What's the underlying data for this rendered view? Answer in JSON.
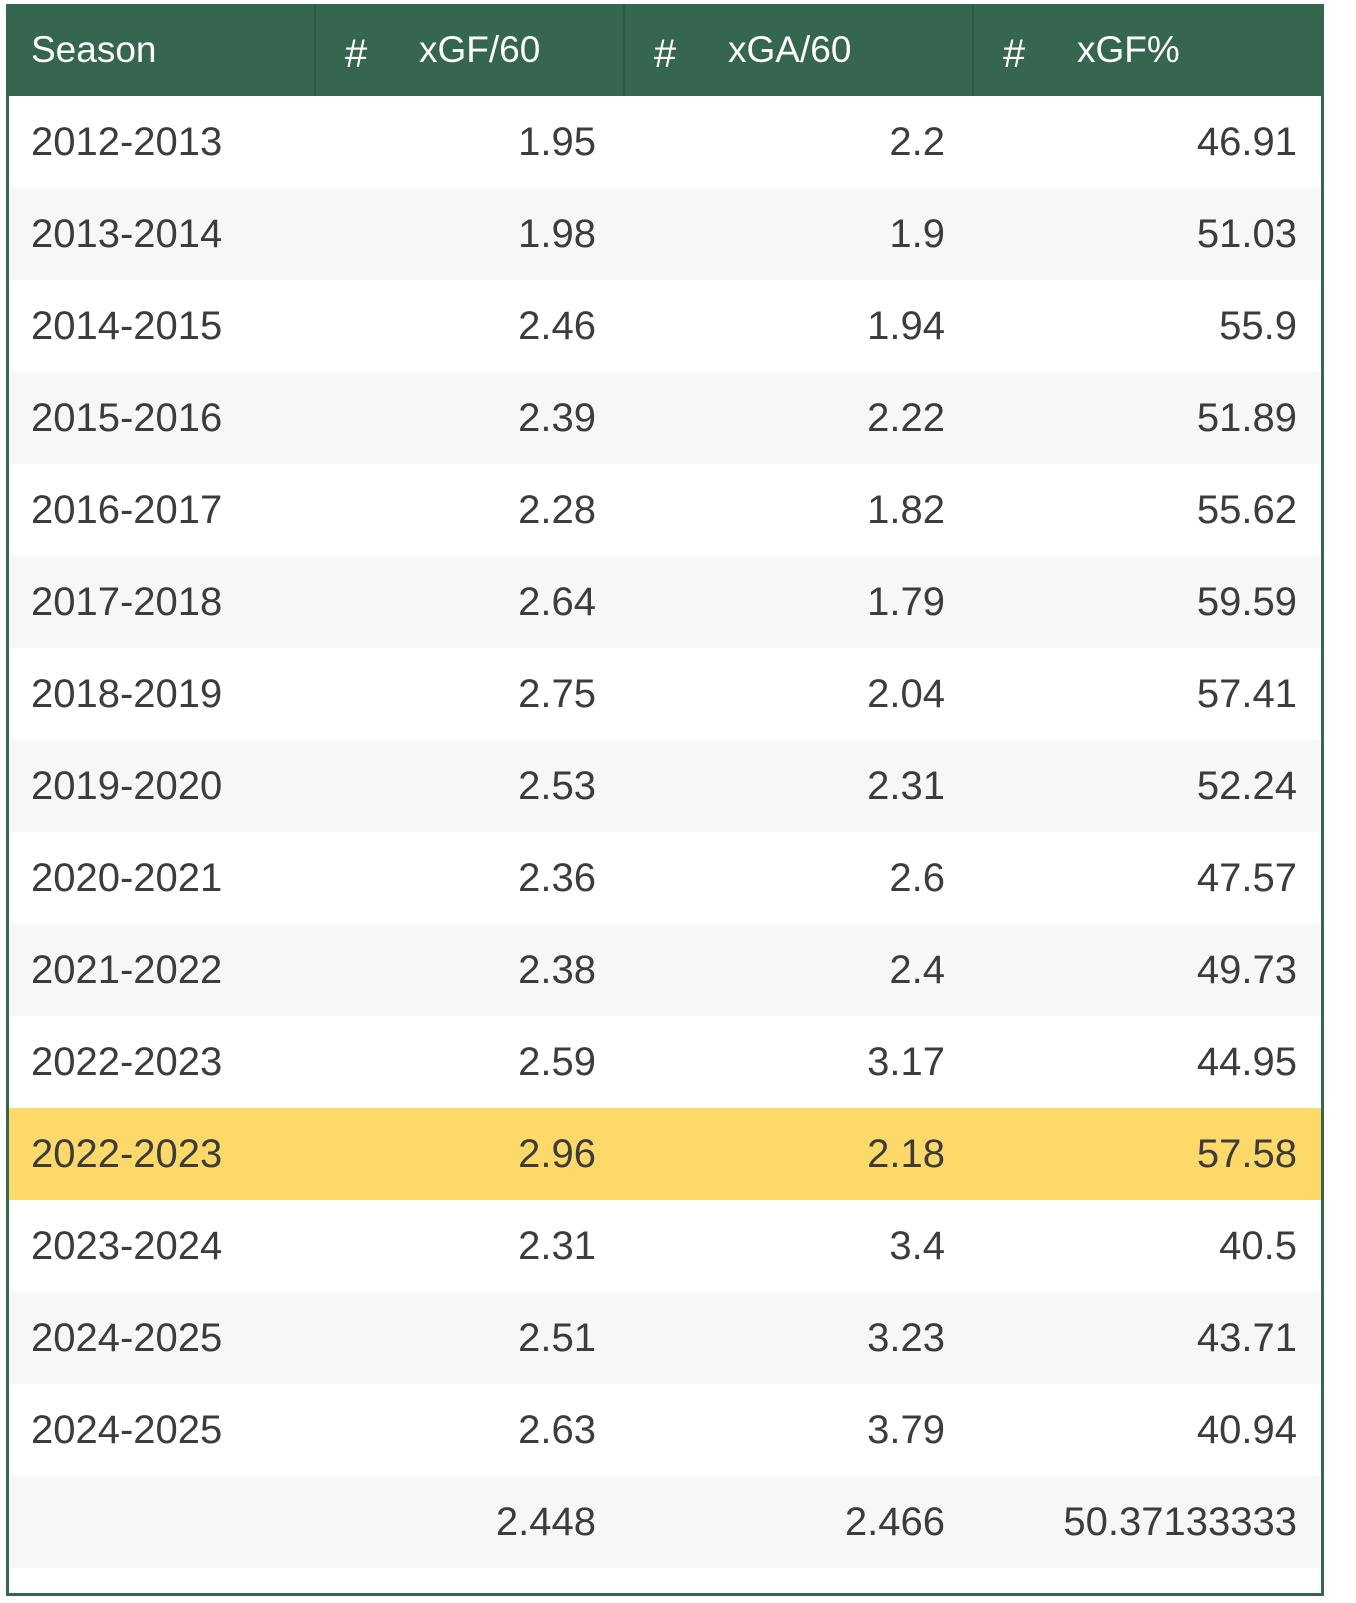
{
  "chart_data": {
    "type": "table",
    "columns": [
      {
        "label": "Season",
        "type_icon": ""
      },
      {
        "label": "xGF/60",
        "type_icon": "#"
      },
      {
        "label": "xGA/60",
        "type_icon": "#"
      },
      {
        "label": "xGF%",
        "type_icon": "#"
      }
    ],
    "rows": [
      {
        "season": "2012-2013",
        "xgf60": "1.95",
        "xga60": "2.2",
        "xgf_pct": "46.91"
      },
      {
        "season": "2013-2014",
        "xgf60": "1.98",
        "xga60": "1.9",
        "xgf_pct": "51.03"
      },
      {
        "season": "2014-2015",
        "xgf60": "2.46",
        "xga60": "1.94",
        "xgf_pct": "55.9"
      },
      {
        "season": "2015-2016",
        "xgf60": "2.39",
        "xga60": "2.22",
        "xgf_pct": "51.89"
      },
      {
        "season": "2016-2017",
        "xgf60": "2.28",
        "xga60": "1.82",
        "xgf_pct": "55.62"
      },
      {
        "season": "2017-2018",
        "xgf60": "2.64",
        "xga60": "1.79",
        "xgf_pct": "59.59"
      },
      {
        "season": "2018-2019",
        "xgf60": "2.75",
        "xga60": "2.04",
        "xgf_pct": "57.41"
      },
      {
        "season": "2019-2020",
        "xgf60": "2.53",
        "xga60": "2.31",
        "xgf_pct": "52.24"
      },
      {
        "season": "2020-2021",
        "xgf60": "2.36",
        "xga60": "2.6",
        "xgf_pct": "47.57"
      },
      {
        "season": "2021-2022",
        "xgf60": "2.38",
        "xga60": "2.4",
        "xgf_pct": "49.73"
      },
      {
        "season": "2022-2023",
        "xgf60": "2.59",
        "xga60": "3.17",
        "xgf_pct": "44.95"
      },
      {
        "season": "2022-2023",
        "xgf60": "2.96",
        "xga60": "2.18",
        "xgf_pct": "57.58",
        "highlighted": true
      },
      {
        "season": "2023-2024",
        "xgf60": "2.31",
        "xga60": "3.4",
        "xgf_pct": "40.5"
      },
      {
        "season": "2024-2025",
        "xgf60": "2.51",
        "xga60": "3.23",
        "xgf_pct": "43.71"
      },
      {
        "season": "2024-2025",
        "xgf60": "2.63",
        "xga60": "3.79",
        "xgf_pct": "40.94"
      },
      {
        "season": "",
        "xgf60": "2.448",
        "xga60": "2.466",
        "xgf_pct": "50.37133333"
      }
    ]
  },
  "colors": {
    "header_bg": "#35664f",
    "header_text": "#ffffff",
    "row_alt_bg": "#f6f7f9",
    "highlight_bg": "#fdd96a",
    "cell_text": "#3c3c3c"
  }
}
